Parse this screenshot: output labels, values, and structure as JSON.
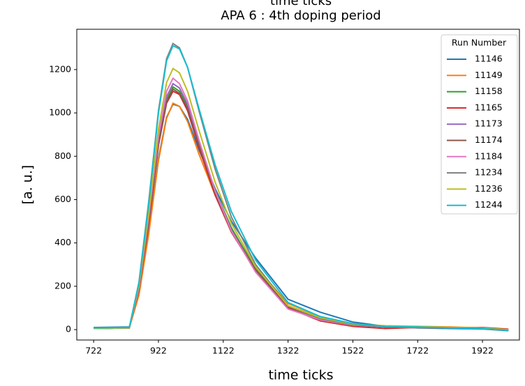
{
  "chart_data": {
    "type": "line",
    "title_lines": [
      "time ticks",
      "APA 6 :  4th doping period"
    ],
    "x_label": "time ticks",
    "y_label": "[a. u.]",
    "legend_title": "Run Number",
    "legend": "upper right",
    "x": [
      722,
      832,
      862,
      892,
      922,
      947,
      967,
      987,
      1012,
      1047,
      1097,
      1147,
      1222,
      1322,
      1422,
      1522,
      1622,
      1722,
      1822,
      1922,
      2002
    ],
    "series": [
      {
        "name": "11146",
        "color": "#1f77b4",
        "values": [
          10,
          12,
          170,
          450,
          790,
          980,
          1040,
          1030,
          970,
          830,
          650,
          500,
          330,
          140,
          80,
          35,
          15,
          8,
          5,
          3,
          -5
        ]
      },
      {
        "name": "11149",
        "color": "#ff7f0e",
        "values": [
          5,
          8,
          160,
          440,
          780,
          975,
          1045,
          1030,
          960,
          810,
          620,
          460,
          290,
          120,
          60,
          25,
          12,
          15,
          12,
          8,
          0
        ]
      },
      {
        "name": "11158",
        "color": "#2ca02c",
        "values": [
          5,
          8,
          190,
          500,
          860,
          1060,
          1120,
          1100,
          1030,
          860,
          640,
          470,
          280,
          110,
          55,
          25,
          15,
          12,
          8,
          5,
          -3
        ]
      },
      {
        "name": "11165",
        "color": "#d62728",
        "values": [
          5,
          8,
          185,
          490,
          850,
          1045,
          1100,
          1085,
          1010,
          840,
          620,
          450,
          270,
          100,
          40,
          15,
          5,
          10,
          8,
          10,
          2
        ]
      },
      {
        "name": "11173",
        "color": "#9467bd",
        "values": [
          5,
          8,
          190,
          505,
          870,
          1075,
          1135,
          1115,
          1040,
          865,
          640,
          460,
          275,
          105,
          50,
          22,
          12,
          10,
          8,
          5,
          -2
        ]
      },
      {
        "name": "11174",
        "color": "#8c564b",
        "values": [
          5,
          8,
          188,
          495,
          855,
          1050,
          1110,
          1090,
          1020,
          850,
          630,
          455,
          275,
          105,
          50,
          22,
          12,
          10,
          8,
          5,
          -2
        ]
      },
      {
        "name": "11184",
        "color": "#e377c2",
        "values": [
          5,
          8,
          195,
          520,
          890,
          1100,
          1160,
          1135,
          1055,
          875,
          640,
          455,
          265,
          95,
          45,
          20,
          12,
          10,
          8,
          5,
          -2
        ]
      },
      {
        "name": "11234",
        "color": "#7f7f7f",
        "values": [
          5,
          8,
          220,
          590,
          1010,
          1250,
          1320,
          1300,
          1210,
          1010,
          740,
          520,
          300,
          110,
          50,
          22,
          12,
          10,
          8,
          5,
          -3
        ]
      },
      {
        "name": "11236",
        "color": "#bcbd22",
        "values": [
          5,
          8,
          205,
          540,
          925,
          1140,
          1205,
          1185,
          1100,
          920,
          680,
          490,
          290,
          110,
          55,
          25,
          18,
          15,
          10,
          8,
          0
        ]
      },
      {
        "name": "11244",
        "color": "#17becf",
        "values": [
          8,
          10,
          215,
          580,
          1000,
          1240,
          1310,
          1295,
          1210,
          1020,
          760,
          545,
          320,
          125,
          60,
          28,
          15,
          12,
          8,
          5,
          -3
        ]
      }
    ],
    "xlim": [
      670,
      2036
    ],
    "ylim": [
      -48,
      1386
    ],
    "xticks": [
      722,
      922,
      1122,
      1322,
      1522,
      1722,
      1922
    ],
    "yticks": [
      0,
      200,
      400,
      600,
      800,
      1000,
      1200
    ]
  }
}
